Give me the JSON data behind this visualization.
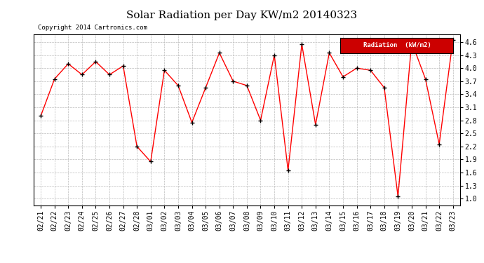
{
  "title": "Solar Radiation per Day KW/m2 20140323",
  "copyright": "Copyright 2014 Cartronics.com",
  "legend_label": "Radiation  (kW/m2)",
  "dates": [
    "02/21",
    "02/22",
    "02/23",
    "02/24",
    "02/25",
    "02/26",
    "02/27",
    "02/28",
    "03/01",
    "03/02",
    "03/03",
    "03/04",
    "03/05",
    "03/06",
    "03/07",
    "03/08",
    "03/09",
    "03/10",
    "03/11",
    "03/12",
    "03/13",
    "03/14",
    "03/15",
    "03/16",
    "03/17",
    "03/18",
    "03/19",
    "03/20",
    "03/21",
    "03/22",
    "03/23"
  ],
  "values": [
    2.9,
    3.75,
    4.1,
    3.85,
    4.15,
    3.85,
    4.05,
    2.2,
    1.85,
    3.95,
    3.6,
    2.75,
    3.55,
    4.35,
    3.7,
    3.6,
    2.8,
    4.3,
    1.65,
    4.55,
    2.7,
    4.35,
    3.8,
    4.0,
    3.95,
    3.55,
    1.05,
    4.6,
    3.75,
    2.25,
    4.65
  ],
  "line_color": "#ff0000",
  "marker": "+",
  "marker_color": "#000000",
  "background_color": "#ffffff",
  "plot_bg_color": "#ffffff",
  "grid_color": "#bbbbbb",
  "title_fontsize": 11,
  "tick_label_fontsize": 7,
  "ylabel_ticks": [
    1.0,
    1.3,
    1.6,
    1.9,
    2.2,
    2.5,
    2.8,
    3.1,
    3.4,
    3.7,
    4.0,
    4.3,
    4.6
  ],
  "ylim": [
    0.85,
    4.78
  ],
  "legend_bg": "#cc0000",
  "legend_text_color": "#ffffff"
}
